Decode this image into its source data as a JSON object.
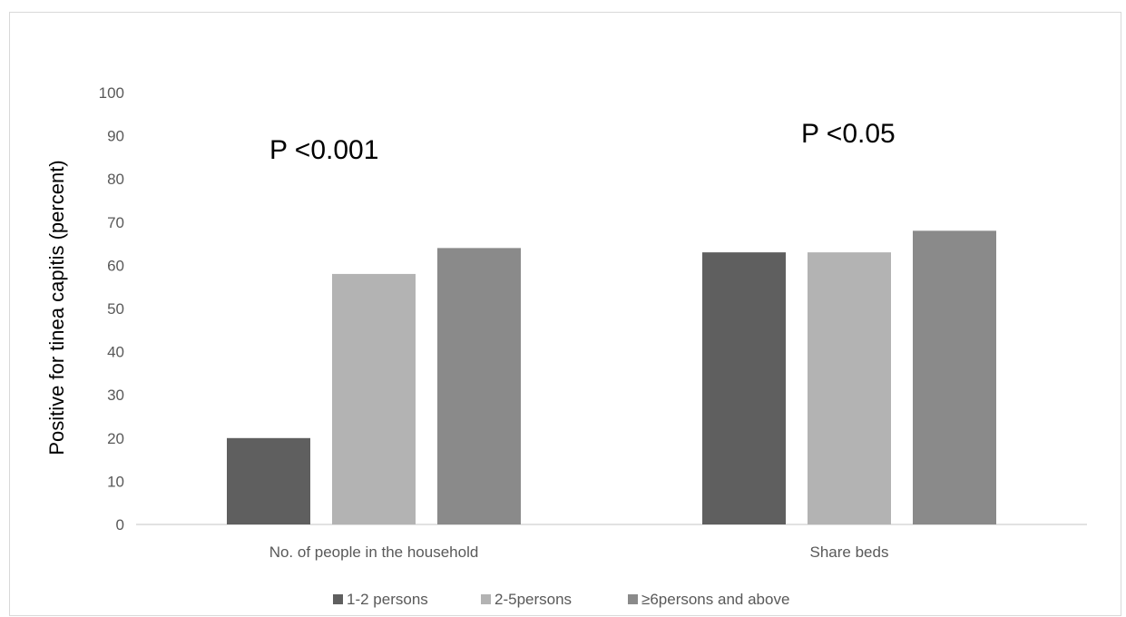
{
  "chart_data": {
    "type": "bar",
    "title": "",
    "xlabel": "",
    "ylabel": "Positive for tinea capitis (percent)",
    "ylim": [
      0,
      100
    ],
    "yticks": [
      0,
      10,
      20,
      30,
      40,
      50,
      60,
      70,
      80,
      90,
      100
    ],
    "categories": [
      "No. of people in the household",
      "Share beds"
    ],
    "series": [
      {
        "name": "1-2 persons",
        "color": "#5f5f5f",
        "values": [
          20,
          63
        ]
      },
      {
        "name": "2-5persons",
        "color": "#b3b3b3",
        "values": [
          58,
          63
        ]
      },
      {
        "name": "≥6persons and above",
        "color": "#8a8a8a",
        "values": [
          64,
          68
        ]
      }
    ],
    "annotations": [
      "P <0.001",
      "P <0.05"
    ],
    "grid": false,
    "legend": "bottom"
  }
}
